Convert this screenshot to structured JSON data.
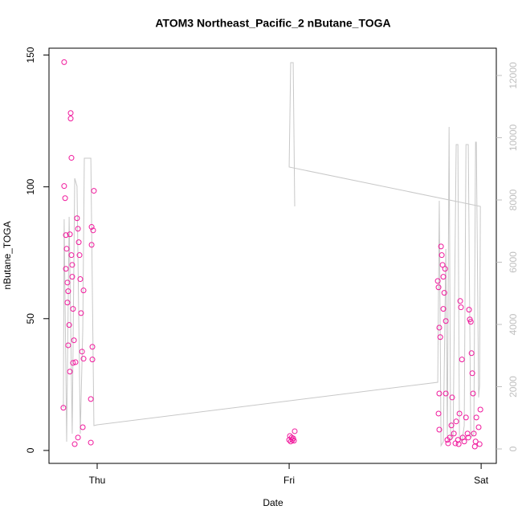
{
  "chart_data": {
    "type": "scatter",
    "title": "ATOM3 Northeast_Pacific_2 nButane_TOGA",
    "xlabel": "Date",
    "ylabel": "nButane_TOGA",
    "xlim": [
      -0.251,
      2.079
    ],
    "xticks": [
      {
        "value": 0,
        "label": "Thu"
      },
      {
        "value": 1,
        "label": "Fri"
      },
      {
        "value": 2,
        "label": "Sat"
      }
    ],
    "ylim": [
      -4.9,
      152.6
    ],
    "yticks": [
      0,
      50,
      100,
      150
    ],
    "y2lim": [
      -464,
      12877
    ],
    "y2ticks": [
      0,
      2000,
      4000,
      6000,
      8000,
      10000,
      12000
    ],
    "y2color": "#bfbfbf",
    "series": [
      {
        "color": "#f0189c",
        "x": [
          -0.176,
          -0.172,
          -0.172,
          -0.167,
          -0.163,
          -0.163,
          -0.159,
          -0.155,
          -0.155,
          -0.151,
          -0.151,
          -0.146,
          -0.142,
          -0.142,
          -0.138,
          -0.138,
          -0.134,
          -0.134,
          -0.13,
          -0.13,
          -0.126,
          -0.126,
          -0.121,
          -0.117,
          -0.113,
          -0.105,
          -0.1,
          -0.1,
          -0.096,
          -0.092,
          -0.088,
          -0.084,
          -0.079,
          -0.075,
          -0.071,
          -0.071,
          -0.033,
          -0.033,
          -0.029,
          -0.029,
          -0.025,
          -0.025,
          -0.017,
          -0.021,
          1.0,
          1.004,
          1.008,
          1.013,
          1.017,
          1.021,
          1.029,
          1.025,
          1.774,
          1.778,
          1.782,
          1.782,
          1.787,
          1.778,
          1.782,
          1.791,
          1.795,
          1.799,
          1.803,
          1.803,
          1.808,
          1.812,
          1.816,
          1.816,
          1.824,
          1.828,
          1.837,
          1.845,
          1.849,
          1.858,
          1.866,
          1.87,
          1.879,
          1.887,
          1.891,
          1.895,
          1.9,
          1.904,
          1.912,
          1.921,
          1.929,
          1.933,
          1.937,
          1.941,
          1.946,
          1.95,
          1.954,
          1.958,
          1.962,
          1.971,
          1.975,
          1.987,
          1.992,
          1.996,
          1.967,
          1.883
        ],
        "values": [
          16.2,
          147.3,
          100.3,
          95.7,
          81.7,
          68.9,
          76.5,
          63.7,
          56.1,
          60.4,
          39.9,
          47.6,
          29.9,
          82,
          128,
          125.9,
          111,
          74.1,
          70.4,
          65.9,
          53.7,
          33.2,
          41.8,
          2.4,
          33.5,
          88.1,
          84.1,
          4.9,
          79,
          74.1,
          65,
          52.1,
          37.5,
          8.8,
          60.7,
          34.8,
          3,
          19.5,
          84.8,
          78,
          39.3,
          34.5,
          98.5,
          83.5,
          4,
          5.5,
          3.4,
          4.9,
          4,
          4.6,
          7.3,
          3.7,
          64.3,
          61.9,
          46.6,
          21.6,
          43,
          14,
          7.9,
          77.4,
          74.1,
          70.4,
          65.9,
          53.7,
          59.8,
          68.9,
          21.6,
          49.1,
          4,
          2.7,
          4.9,
          9.5,
          20.1,
          6.4,
          2.7,
          11,
          4,
          14,
          56.7,
          54.3,
          34.5,
          4.9,
          3.4,
          12.5,
          6.4,
          4.9,
          53.4,
          49.7,
          48.8,
          36.9,
          29.3,
          21.6,
          6.4,
          3.4,
          12.5,
          8.8,
          2.4,
          15.5,
          1.5,
          2.4
        ]
      },
      {
        "color": "#c8c8c8",
        "axis": "y2",
        "mode": "line",
        "x": [
          -0.176,
          -0.172,
          -0.159,
          -0.146,
          -0.13,
          -0.117,
          -0.105,
          -0.088,
          -0.075,
          -0.067,
          -0.033,
          -0.017,
          0,
          1.774,
          1.782,
          1.791,
          1.803,
          1.816,
          1.824,
          1.833,
          1.841,
          1.854,
          1.87,
          1.879,
          1.887,
          1.9,
          1.912,
          1.921,
          1.933,
          1.946,
          1.962,
          1.971,
          1.975,
          1.987,
          1.992,
          1.996,
          1.0,
          1.008,
          1.021,
          1.029
        ],
        "values": [
          1316,
          7381,
          232,
          7458,
          490,
          8697,
          8439,
          490,
          3845,
          9342,
          9342,
          748,
          774,
          2142,
          7974,
          103,
          232,
          6426,
          361,
          10348,
          284,
          361,
          9781,
          9781,
          361,
          232,
          748,
          9781,
          9781,
          361,
          490,
          9858,
          9858,
          1652,
          2039,
          7794,
          9058,
          12413,
          12413,
          7794
        ]
      }
    ]
  }
}
